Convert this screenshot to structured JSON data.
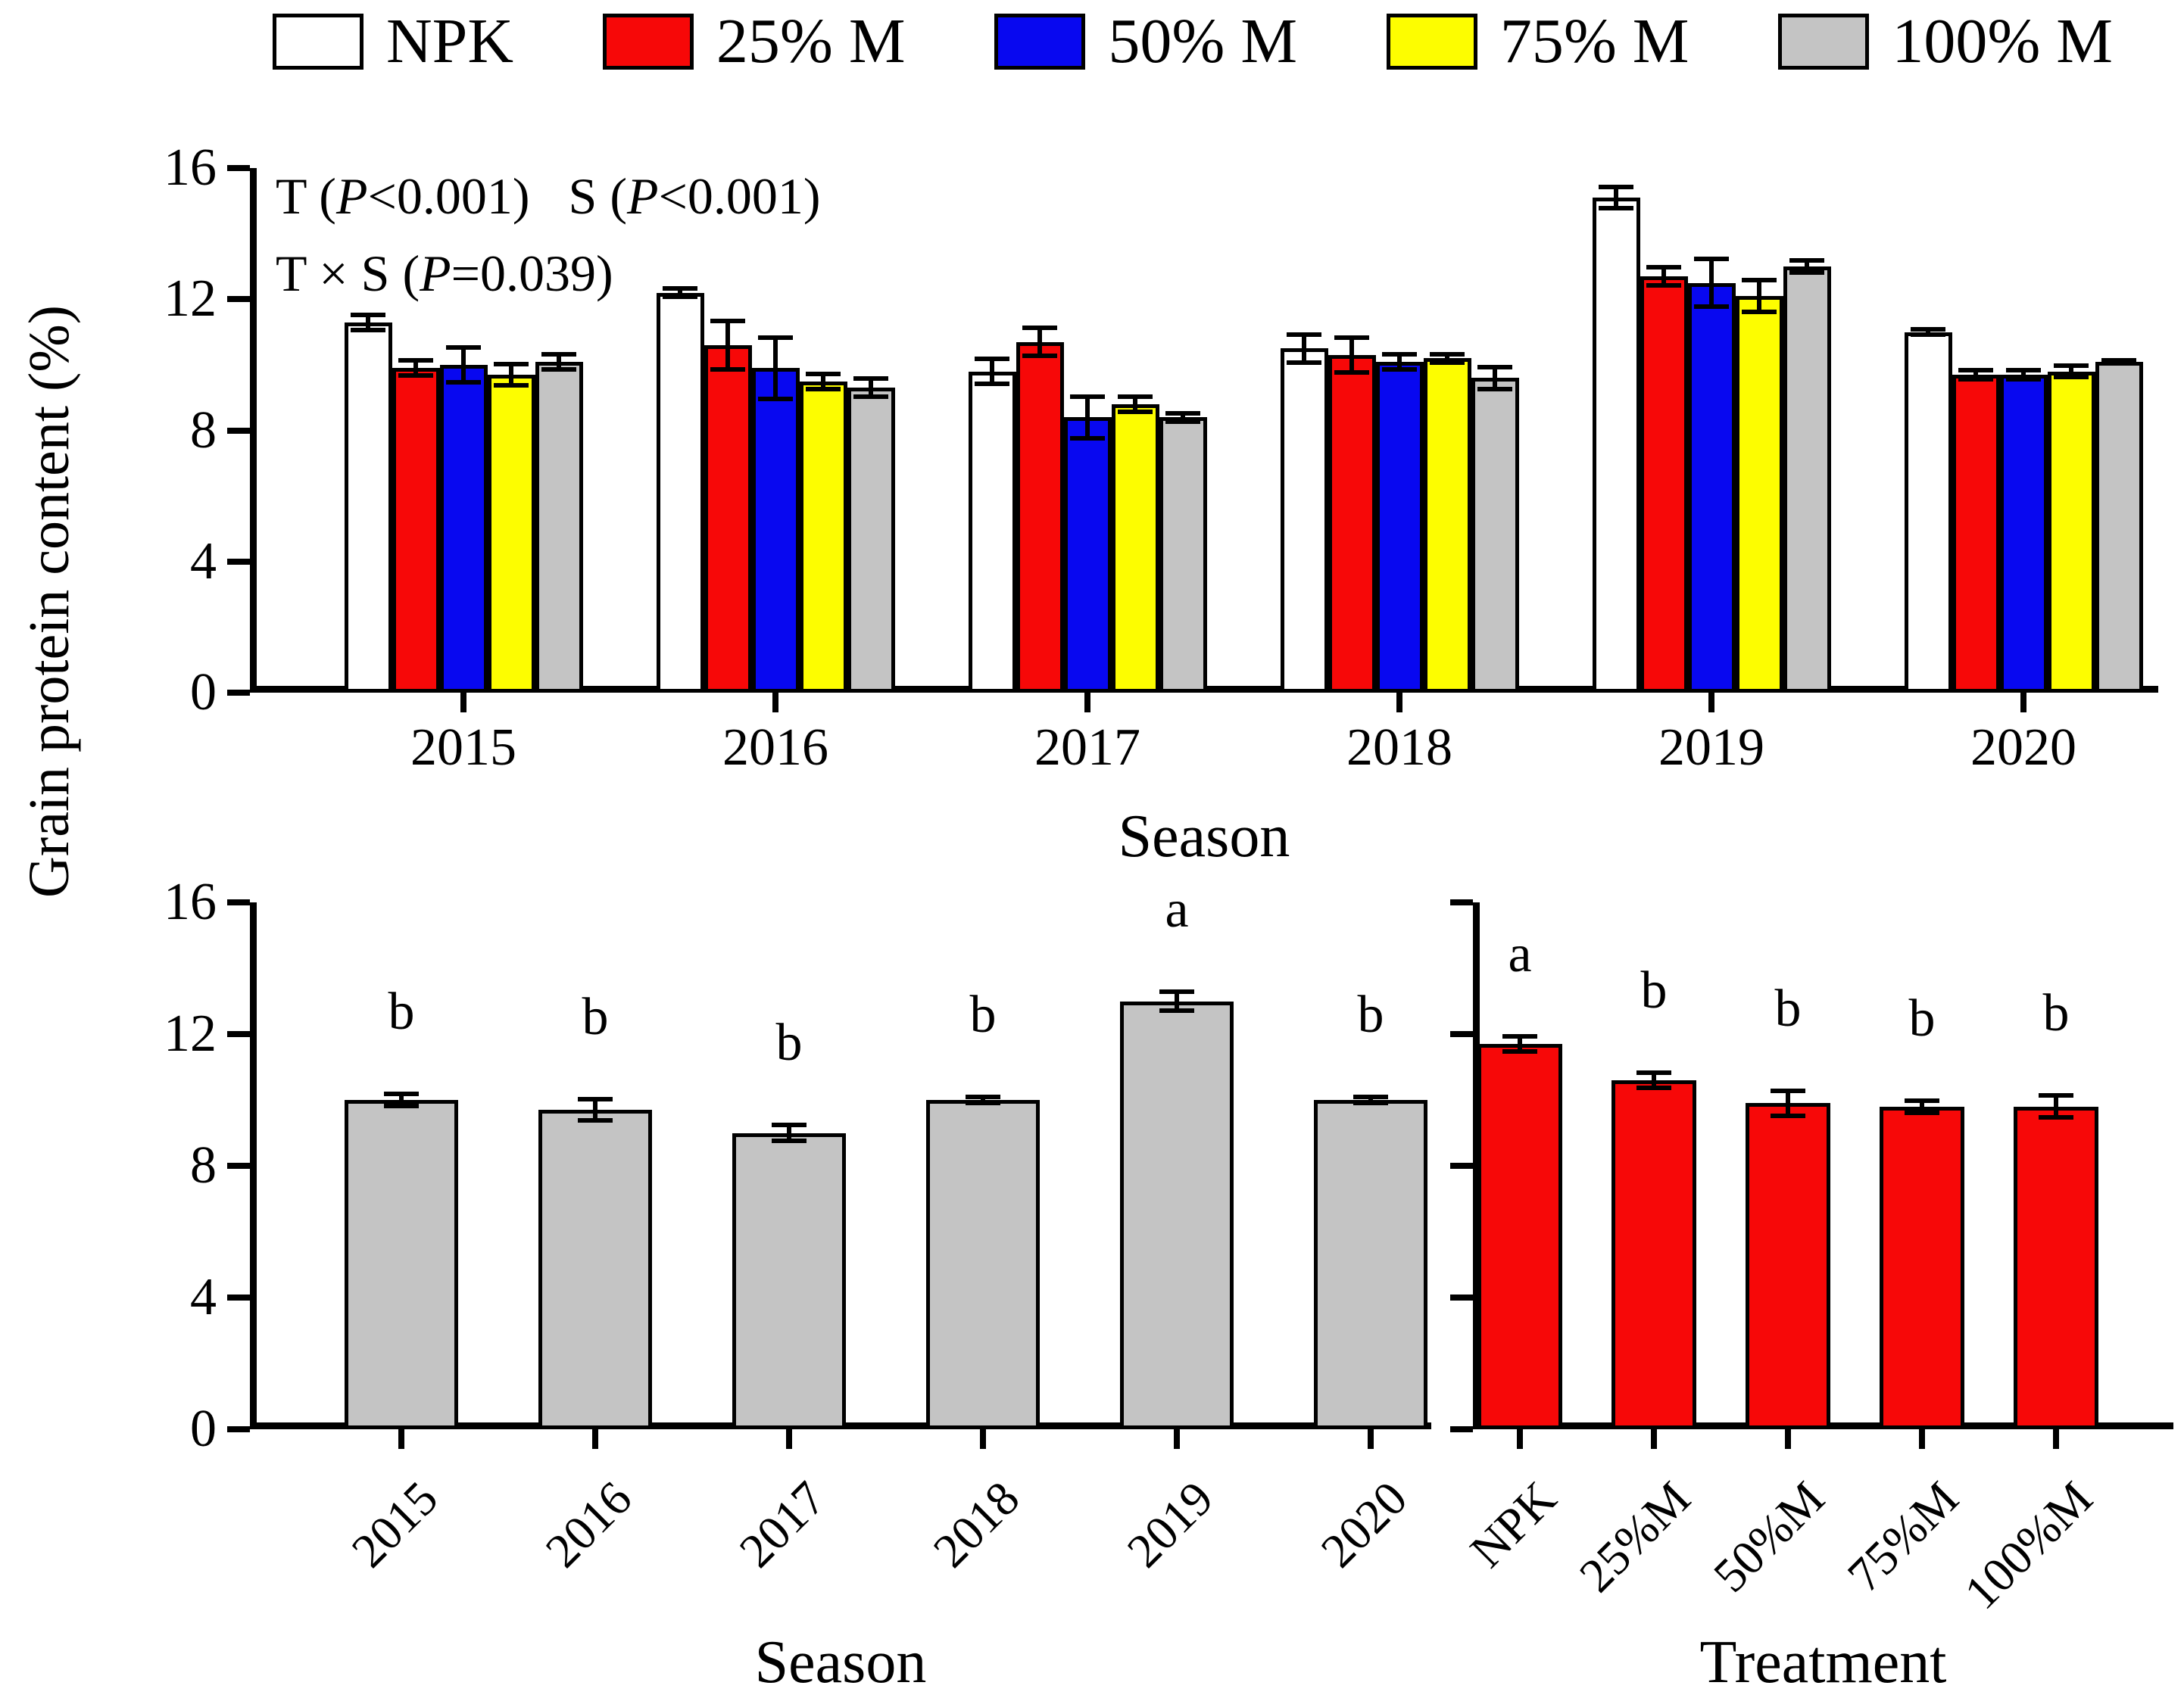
{
  "figure": {
    "y_axis_label": "Grain protein content (%)",
    "background_color": "#ffffff",
    "axis_color": "#000000"
  },
  "chart_data": [
    {
      "id": "grouped-by-season",
      "type": "bar",
      "title": "",
      "xlabel": "Season",
      "ylabel": "Grain protein content (%)",
      "ylim": [
        0,
        16
      ],
      "yticks": [
        0,
        4,
        8,
        12,
        16
      ],
      "grid": false,
      "legend_position": "top",
      "annotations": [
        "T (P<0.001)   S (P<0.001)",
        "T × S (P=0.039)"
      ],
      "categories": [
        "2015",
        "2016",
        "2017",
        "2018",
        "2019",
        "2020"
      ],
      "series": [
        {
          "name": "NPK",
          "color": "#ffffff",
          "values": [
            11.3,
            12.2,
            9.8,
            10.5,
            15.1,
            11.0
          ],
          "errors": [
            0.3,
            0.2,
            0.45,
            0.5,
            0.4,
            0.15
          ]
        },
        {
          "name": "25% M",
          "color": "#f70808",
          "values": [
            9.9,
            10.6,
            10.7,
            10.3,
            12.7,
            9.7
          ],
          "errors": [
            0.3,
            0.8,
            0.5,
            0.6,
            0.35,
            0.2
          ]
        },
        {
          "name": "50% M",
          "color": "#0808f0",
          "values": [
            10.0,
            9.9,
            8.4,
            10.1,
            12.5,
            9.7
          ],
          "errors": [
            0.6,
            1.0,
            0.7,
            0.3,
            0.8,
            0.2
          ]
        },
        {
          "name": "75% M",
          "color": "#fdfd00",
          "values": [
            9.7,
            9.5,
            8.8,
            10.2,
            12.1,
            9.8
          ],
          "errors": [
            0.4,
            0.3,
            0.3,
            0.2,
            0.55,
            0.25
          ]
        },
        {
          "name": "100% M",
          "color": "#c4c4c4",
          "values": [
            10.1,
            9.3,
            8.4,
            9.6,
            13.0,
            10.1
          ],
          "errors": [
            0.3,
            0.35,
            0.2,
            0.4,
            0.25,
            0.1
          ]
        }
      ]
    },
    {
      "id": "season-means",
      "type": "bar",
      "title": "",
      "xlabel": "Season",
      "ylim": [
        0,
        16
      ],
      "yticks": [
        0,
        4,
        8,
        12,
        16
      ],
      "grid": false,
      "bar_color": "#c4c4c4",
      "categories": [
        "2015",
        "2016",
        "2017",
        "2018",
        "2019",
        "2020"
      ],
      "values": [
        10.0,
        9.7,
        9.0,
        10.0,
        13.0,
        10.0
      ],
      "errors": [
        0.25,
        0.4,
        0.3,
        0.15,
        0.35,
        0.15
      ],
      "letters": [
        "b",
        "b",
        "b",
        "b",
        "a",
        "b"
      ]
    },
    {
      "id": "treatment-means",
      "type": "bar",
      "title": "",
      "xlabel": "Treatment",
      "ylim": [
        0,
        16
      ],
      "yticks": [
        0,
        4,
        8,
        12,
        16
      ],
      "show_ytick_labels": false,
      "grid": false,
      "bar_color": "#f70808",
      "categories": [
        "NPK",
        "25%M",
        "50%M",
        "75%M",
        "100%M"
      ],
      "values": [
        11.7,
        10.6,
        9.9,
        9.8,
        9.8
      ],
      "errors": [
        0.3,
        0.3,
        0.45,
        0.25,
        0.4
      ],
      "letters": [
        "a",
        "b",
        "b",
        "b",
        "b"
      ]
    }
  ]
}
